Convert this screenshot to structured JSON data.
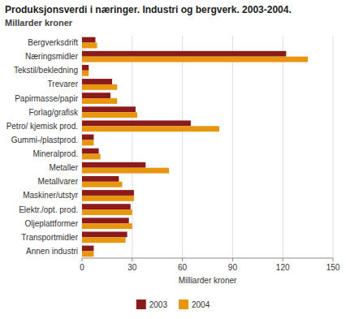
{
  "chart_data": {
    "type": "bar",
    "orientation": "horizontal",
    "title": "Produksjonsverdi i næringer. Industri og bergverk. 2003-2004.",
    "subtitle": "Millarder kroner",
    "xlabel": "Milliarder kroner",
    "categories": [
      "Bergverksdrift",
      "Næringsmidler",
      "Tekstil/bekledning",
      "Trevarer",
      "Papirmasse/papir",
      "Forlag/grafisk",
      "Petro/ kjemisk prod.",
      "Gummi-/plastprod.",
      "Mineralprod.",
      "Metaller",
      "Metallvarer",
      "Maskiner/utstyr",
      "Elektr./opt. prod.",
      "Oljeplattformer",
      "Transportmidler",
      "Annen industri"
    ],
    "series": [
      {
        "name": "2003",
        "color": "#8B1A1A",
        "values": [
          8,
          122,
          4,
          18,
          17,
          32,
          65,
          7,
          10,
          38,
          22,
          31,
          29,
          28,
          27,
          7
        ]
      },
      {
        "name": "2004",
        "color": "#E8960F",
        "values": [
          9,
          135,
          4,
          21,
          21,
          33,
          82,
          7,
          11,
          52,
          24,
          31,
          30,
          30,
          26,
          7
        ]
      }
    ],
    "xlim": [
      0,
      150
    ],
    "xticks": [
      0,
      30,
      60,
      90,
      120,
      150
    ],
    "grid": true,
    "legend": "bottom"
  }
}
